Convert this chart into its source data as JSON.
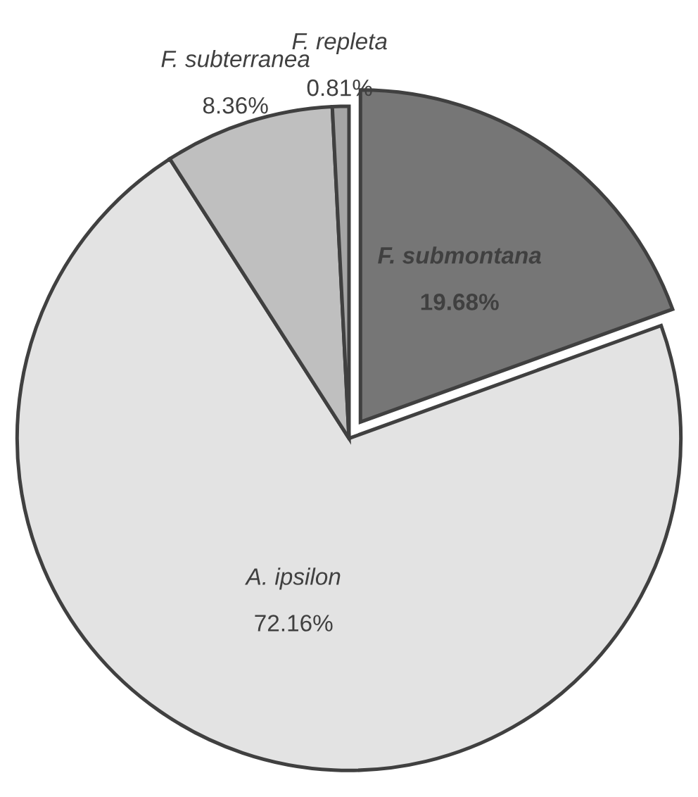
{
  "chart_data": {
    "type": "pie",
    "categories": [
      "F. submontana",
      "A. ipsilon",
      "F. subterranea",
      "F. repleta"
    ],
    "values": [
      19.68,
      72.16,
      8.36,
      0.81
    ],
    "value_labels": [
      "19.68%",
      "72.16%",
      "8.36%",
      "0.81%"
    ],
    "colors": [
      "#767676",
      "#e3e3e3",
      "#bfbfbf",
      "#a5a5a5"
    ]
  }
}
